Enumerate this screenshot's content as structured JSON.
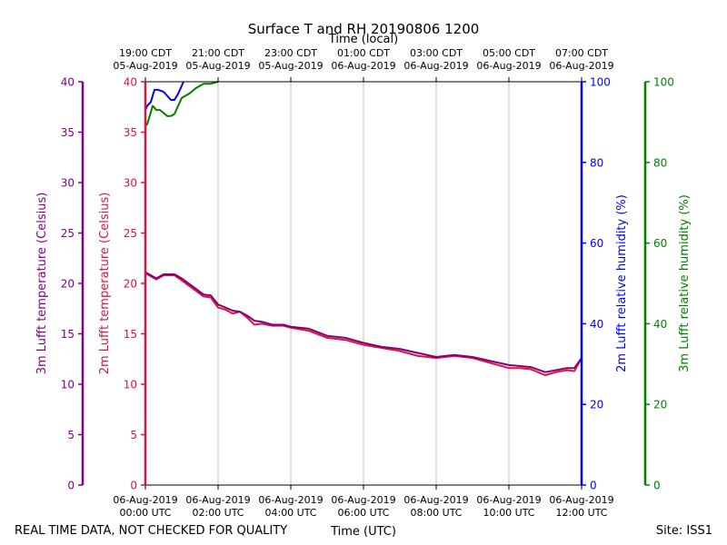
{
  "chart_data": {
    "type": "line",
    "title": "Surface T and RH 20190806 1200",
    "top_axis_label": "Time (local)",
    "bottom_axis_label": "Time (UTC)",
    "footer_left": "REAL TIME DATA, NOT CHECKED FOR QUALITY",
    "footer_right": "Site: ISS1",
    "x_range_hours": [
      0,
      12
    ],
    "x_ticks_utc": [
      {
        "hour": 0,
        "date": "06-Aug-2019",
        "time": "00:00 UTC"
      },
      {
        "hour": 2,
        "date": "06-Aug-2019",
        "time": "02:00 UTC"
      },
      {
        "hour": 4,
        "date": "06-Aug-2019",
        "time": "04:00 UTC"
      },
      {
        "hour": 6,
        "date": "06-Aug-2019",
        "time": "06:00 UTC"
      },
      {
        "hour": 8,
        "date": "06-Aug-2019",
        "time": "08:00 UTC"
      },
      {
        "hour": 10,
        "date": "06-Aug-2019",
        "time": "10:00 UTC"
      },
      {
        "hour": 12,
        "date": "06-Aug-2019",
        "time": "12:00 UTC"
      }
    ],
    "x_ticks_local": [
      {
        "hour": 0,
        "time": "19:00 CDT",
        "date": "05-Aug-2019"
      },
      {
        "hour": 2,
        "time": "21:00 CDT",
        "date": "05-Aug-2019"
      },
      {
        "hour": 4,
        "time": "23:00 CDT",
        "date": "05-Aug-2019"
      },
      {
        "hour": 6,
        "time": "01:00 CDT",
        "date": "06-Aug-2019"
      },
      {
        "hour": 8,
        "time": "03:00 CDT",
        "date": "06-Aug-2019"
      },
      {
        "hour": 10,
        "time": "05:00 CDT",
        "date": "06-Aug-2019"
      },
      {
        "hour": 12,
        "time": "07:00 CDT",
        "date": "06-Aug-2019"
      }
    ],
    "axes": {
      "t3m": {
        "label": "3m Lufft temperature (Celsius)",
        "ylim": [
          0,
          40
        ],
        "ticks": [
          0,
          5,
          10,
          15,
          20,
          25,
          30,
          35,
          40
        ],
        "color": "#800080"
      },
      "t2m": {
        "label": "2m Lufft temperature (Celsius)",
        "ylim": [
          0,
          40
        ],
        "ticks": [
          0,
          5,
          10,
          15,
          20,
          25,
          30,
          35,
          40
        ],
        "color": "#dc143c"
      },
      "rh2m": {
        "label": "2m Lufft relative humidity (%)",
        "ylim": [
          0,
          100
        ],
        "ticks": [
          0,
          20,
          40,
          60,
          80,
          100
        ],
        "color": "#0000ff"
      },
      "rh3m": {
        "label": "3m Lufft relative humidity (%)",
        "ylim": [
          0,
          100
        ],
        "ticks": [
          0,
          20,
          40,
          60,
          80,
          100
        ],
        "color": "#008000"
      }
    },
    "series": [
      {
        "name": "2m Lufft temperature",
        "axis": "t2m",
        "color": "#dc143c",
        "x": [
          0,
          0.3,
          0.5,
          0.8,
          1.0,
          1.3,
          1.6,
          1.8,
          2.0,
          2.2,
          2.4,
          2.6,
          2.8,
          3.0,
          3.2,
          3.5,
          3.8,
          4.0,
          4.5,
          5.0,
          5.5,
          6.0,
          6.5,
          7.0,
          7.5,
          8.0,
          8.5,
          9.0,
          9.5,
          10.0,
          10.3,
          10.6,
          11.0,
          11.3,
          11.6,
          11.8,
          12.0
        ],
        "y": [
          21.0,
          20.4,
          20.8,
          20.8,
          20.3,
          19.5,
          18.7,
          18.6,
          17.6,
          17.4,
          17.0,
          17.2,
          16.6,
          15.9,
          16.0,
          15.8,
          15.8,
          15.6,
          15.3,
          14.6,
          14.4,
          13.9,
          13.6,
          13.3,
          12.8,
          12.6,
          12.8,
          12.6,
          12.1,
          11.6,
          11.6,
          11.5,
          10.9,
          11.2,
          11.4,
          11.3,
          12.6
        ]
      },
      {
        "name": "3m Lufft temperature",
        "axis": "t3m",
        "color": "#800080",
        "x": [
          0,
          0.3,
          0.5,
          0.8,
          1.0,
          1.3,
          1.6,
          1.8,
          2.0,
          2.2,
          2.4,
          2.6,
          2.8,
          3.0,
          3.2,
          3.5,
          3.8,
          4.0,
          4.5,
          5.0,
          5.5,
          6.0,
          6.5,
          7.0,
          7.5,
          8.0,
          8.5,
          9.0,
          9.5,
          10.0,
          10.3,
          10.6,
          11.0,
          11.3,
          11.6,
          11.8,
          12.0
        ],
        "y": [
          21.1,
          20.5,
          20.9,
          20.9,
          20.5,
          19.7,
          18.9,
          18.8,
          17.9,
          17.6,
          17.3,
          17.2,
          16.8,
          16.3,
          16.2,
          15.9,
          15.9,
          15.7,
          15.5,
          14.8,
          14.6,
          14.1,
          13.7,
          13.5,
          13.1,
          12.7,
          12.9,
          12.7,
          12.3,
          11.9,
          11.8,
          11.7,
          11.2,
          11.4,
          11.6,
          11.6,
          12.6
        ]
      },
      {
        "name": "2m Lufft relative humidity",
        "axis": "rh2m",
        "color": "#0000ff",
        "x": [
          0,
          0.05,
          0.15,
          0.25,
          0.35,
          0.5,
          0.6,
          0.7,
          0.8,
          0.9,
          1.0,
          1.05
        ],
        "y": [
          93,
          94,
          95,
          98,
          98,
          97.5,
          96.5,
          95.5,
          95.5,
          97,
          99,
          100
        ]
      },
      {
        "name": "3m Lufft relative humidity",
        "axis": "rh3m",
        "color": "#008000",
        "x": [
          0,
          0.05,
          0.1,
          0.2,
          0.3,
          0.4,
          0.6,
          0.7,
          0.8,
          0.9,
          1.0,
          1.2,
          1.4,
          1.6,
          1.8,
          2.0
        ],
        "y": [
          89,
          89.5,
          91,
          94,
          93,
          93,
          91.5,
          91.5,
          92,
          94,
          96,
          97,
          98.5,
          99.5,
          99.5,
          100
        ]
      }
    ]
  }
}
